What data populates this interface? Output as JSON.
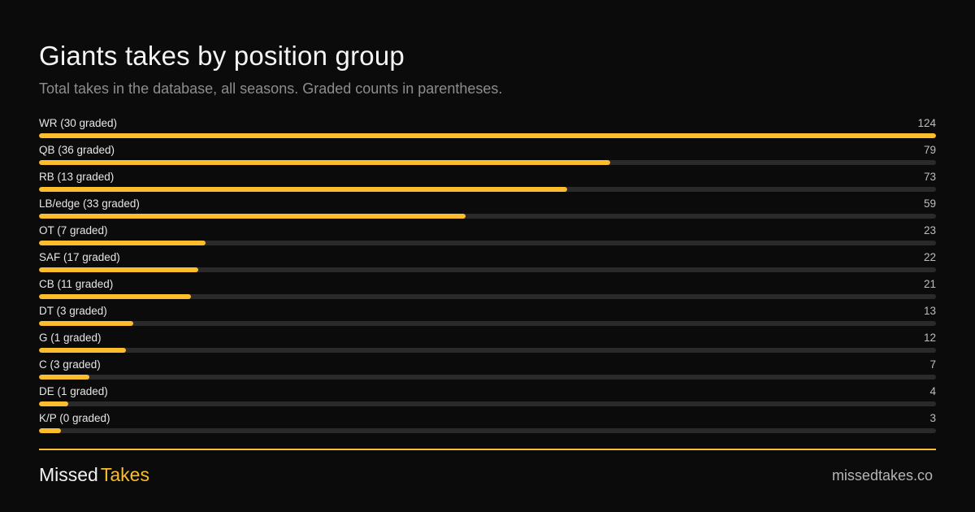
{
  "colors": {
    "background": "#0b0b0b",
    "accent": "#fbbd2b",
    "track": "#2a2a2d"
  },
  "chart_data": {
    "type": "bar",
    "orientation": "horizontal",
    "title": "Giants takes by position group",
    "subtitle": "Total takes in the database, all seasons. Graded counts in parentheses.",
    "categories": [
      "WR (30 graded)",
      "QB (36 graded)",
      "RB (13 graded)",
      "LB/edge (33 graded)",
      "OT (7 graded)",
      "SAF (17 graded)",
      "CB (11 graded)",
      "DT (3 graded)",
      "G (1 graded)",
      "C (3 graded)",
      "DE (1 graded)",
      "K/P (0 graded)"
    ],
    "values": [
      124,
      79,
      73,
      59,
      23,
      22,
      21,
      13,
      12,
      7,
      4,
      3
    ],
    "xlim": [
      0,
      124
    ],
    "grid": false,
    "legend": "none"
  },
  "footer": {
    "brand_part1": "Missed",
    "brand_part2": "Takes",
    "site": "missedtakes.co"
  }
}
